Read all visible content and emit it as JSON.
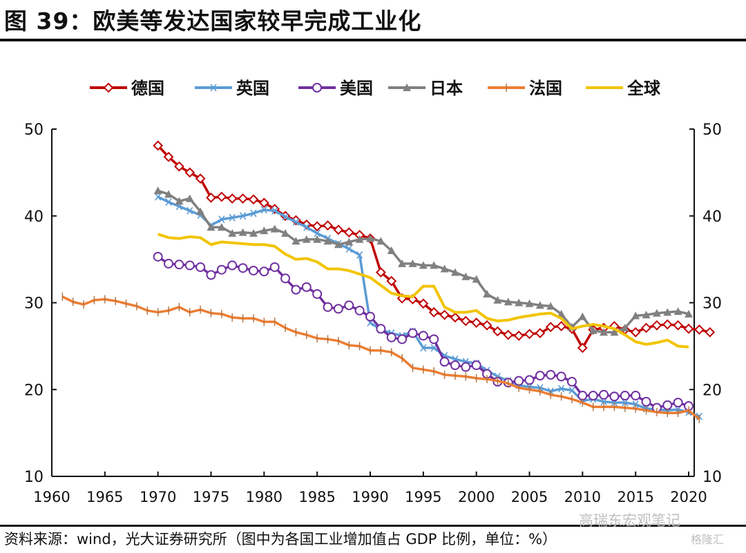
{
  "figure": {
    "title": "图 39：欧美等发达国家较早完成工业化",
    "source": "资料来源：wind，光大证券研究所（图中为各国工业增加值占 GDP 比例，单位：%）",
    "watermark": "高瑞东宏观笔记",
    "watermark2": "格隆汇"
  },
  "chart_data": {
    "type": "line",
    "title": "欧美等发达国家较早完成工业化",
    "xlabel": "",
    "ylabel": "工业增加值占GDP比例（%）",
    "xlim": [
      1960,
      2020
    ],
    "ylim": [
      10,
      50
    ],
    "x_ticks": [
      "1960",
      "1965",
      "1970",
      "1975",
      "1980",
      "1985",
      "1990",
      "1995",
      "2000",
      "2005",
      "2010",
      "2015",
      "2020"
    ],
    "y_ticks": [
      "10",
      "20",
      "30",
      "40",
      "50"
    ],
    "y_ticks_right": [
      "10",
      "20",
      "30",
      "40",
      "50"
    ],
    "grid": false,
    "legend_position": "top",
    "series": [
      {
        "name": "德国",
        "color": "#C00000",
        "marker": "diamond-open",
        "start": 1970,
        "values": [
          48.1,
          46.8,
          45.7,
          45.0,
          44.3,
          42.1,
          42.2,
          42.0,
          42.0,
          41.9,
          41.5,
          40.8,
          40.0,
          39.5,
          39.0,
          38.8,
          38.9,
          38.4,
          38.1,
          37.8,
          37.4,
          33.5,
          32.5,
          30.5,
          30.4,
          29.9,
          28.9,
          28.6,
          28.3,
          27.9,
          27.7,
          27.4,
          26.7,
          26.3,
          26.2,
          26.4,
          26.5,
          27.2,
          27.3,
          27.0,
          24.8,
          26.9,
          27.1,
          27.3,
          26.9,
          26.6,
          27.1,
          27.4,
          27.5,
          27.4,
          27.0,
          26.9,
          26.6
        ]
      },
      {
        "name": "英国",
        "color": "#5B9BD5",
        "marker": "x",
        "start": 1970,
        "values": [
          42.2,
          41.6,
          41.1,
          40.6,
          40.1,
          38.9,
          39.6,
          39.8,
          40.0,
          40.3,
          40.7,
          40.6,
          39.9,
          39.3,
          38.7,
          38.0,
          37.4,
          36.8,
          36.2,
          35.5,
          27.7,
          26.9,
          26.5,
          26.2,
          26.7,
          24.8,
          24.8,
          23.9,
          23.5,
          23.2,
          23.0,
          22.2,
          21.5,
          21.0,
          20.5,
          20.3,
          20.2,
          19.8,
          20.1,
          19.9,
          18.7,
          18.9,
          18.6,
          18.5,
          18.5,
          18.3,
          17.8,
          17.7,
          17.6,
          17.7,
          17.4,
          16.9
        ]
      },
      {
        "name": "美国",
        "color": "#7030A0",
        "marker": "circle-open",
        "start": 1970,
        "values": [
          35.3,
          34.5,
          34.4,
          34.3,
          34.1,
          33.2,
          33.8,
          34.3,
          34.0,
          33.7,
          33.6,
          34.1,
          32.8,
          31.5,
          31.8,
          31.0,
          29.5,
          29.3,
          29.7,
          29.1,
          28.4,
          27.0,
          26.0,
          25.8,
          26.5,
          26.2,
          25.8,
          23.2,
          22.8,
          22.6,
          22.8,
          21.8,
          20.9,
          20.8,
          21.0,
          21.1,
          21.6,
          21.7,
          21.5,
          20.9,
          19.3,
          19.3,
          19.4,
          19.2,
          19.3,
          19.3,
          18.6,
          17.9,
          18.2,
          18.5,
          18.1
        ]
      },
      {
        "name": "日本",
        "color": "#808080",
        "marker": "triangle",
        "start": 1970,
        "values": [
          42.9,
          42.5,
          41.7,
          42.0,
          40.5,
          38.7,
          38.7,
          38.0,
          38.1,
          38.0,
          38.3,
          38.5,
          38.0,
          37.1,
          37.3,
          37.3,
          37.1,
          36.7,
          37.0,
          37.3,
          37.4,
          37.1,
          36.0,
          34.5,
          34.5,
          34.3,
          34.3,
          33.9,
          33.5,
          33.0,
          32.7,
          31.0,
          30.3,
          30.1,
          30.0,
          29.9,
          29.7,
          29.6,
          28.7,
          27.2,
          28.4,
          26.8,
          26.6,
          26.6,
          27.1,
          28.5,
          28.6,
          28.8,
          28.9,
          29.0,
          28.7
        ]
      },
      {
        "name": "法国",
        "color": "#ED7D31",
        "marker": "plus",
        "start": 1961,
        "values": [
          30.7,
          30.1,
          29.8,
          30.3,
          30.4,
          30.2,
          29.9,
          29.6,
          29.1,
          28.9,
          29.1,
          29.5,
          28.9,
          29.2,
          28.8,
          28.7,
          28.3,
          28.2,
          28.2,
          27.8,
          27.8,
          27.1,
          26.6,
          26.3,
          25.9,
          25.8,
          25.6,
          25.1,
          25.0,
          24.5,
          24.5,
          24.3,
          23.6,
          22.5,
          22.3,
          22.1,
          21.7,
          21.6,
          21.5,
          21.3,
          21.2,
          21.0,
          20.7,
          20.2,
          20.0,
          19.8,
          19.4,
          19.2,
          18.9,
          18.5,
          18.0,
          18.0,
          18.0,
          17.9,
          17.8,
          17.6,
          17.4,
          17.3,
          17.3,
          17.6,
          16.6
        ]
      },
      {
        "name": "全球",
        "color": "#F2C400",
        "marker": "none",
        "start": 1970,
        "values": [
          37.9,
          37.5,
          37.4,
          37.6,
          37.5,
          36.7,
          37.0,
          36.9,
          36.8,
          36.7,
          36.7,
          36.5,
          35.6,
          35.0,
          35.1,
          34.7,
          33.9,
          33.9,
          33.7,
          33.3,
          32.9,
          32.0,
          31.1,
          30.8,
          30.7,
          31.9,
          31.9,
          29.5,
          28.9,
          28.9,
          29.1,
          28.2,
          27.9,
          28.0,
          28.3,
          28.5,
          28.7,
          28.8,
          28.2,
          27.0,
          27.3,
          27.5,
          27.3,
          27.0,
          26.3,
          25.5,
          25.2,
          25.4,
          25.7,
          25.0,
          24.9
        ]
      }
    ]
  }
}
